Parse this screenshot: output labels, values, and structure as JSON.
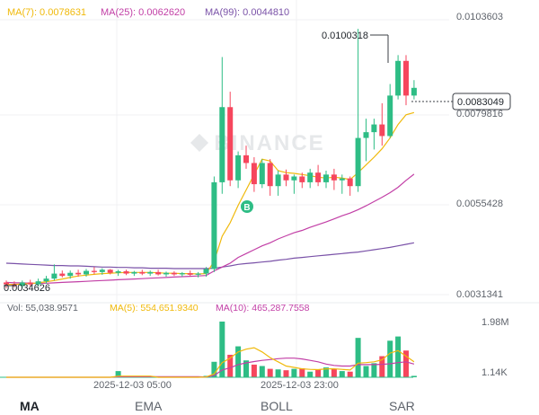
{
  "watermark": "BINANCE",
  "ma_legend": [
    {
      "label": "MA(7): 0.0078631",
      "color": "#f0b90b"
    },
    {
      "label": "MA(25): 0.0062620",
      "color": "#c23fa6"
    },
    {
      "label": "MA(99): 0.0044810",
      "color": "#7a52a8"
    }
  ],
  "price_scale": [
    "0.0103603",
    "0.0079816",
    "0.0055428",
    "0.0031341"
  ],
  "current_price": "0.0083049",
  "high_label": "0.0100318",
  "low_label": "0.0034626",
  "buy_marker": "B",
  "volume_legend": [
    {
      "label": "Vol: 55,038.9571",
      "color": "#5e636b"
    },
    {
      "label": "MA(5): 554,651.9340",
      "color": "#f0b90b"
    },
    {
      "label": "MA(10): 465,287.7558",
      "color": "#c23fa6"
    }
  ],
  "volume_scale": [
    "1.98M",
    "1.14K"
  ],
  "time_labels": [
    "2025-12-03 05:00",
    "2025-12-03 23:00"
  ],
  "tabs": [
    {
      "label": "MA",
      "active": true
    },
    {
      "label": "EMA",
      "active": false
    },
    {
      "label": "BOLL",
      "active": false
    },
    {
      "label": "SAR",
      "active": false
    }
  ],
  "chart_data": {
    "type": "candlestick",
    "up_color": "#2ebd85",
    "down_color": "#f6465d",
    "candles": [
      [
        0.00345,
        0.0035,
        0.0033,
        0.0034
      ],
      [
        0.0034,
        0.00348,
        0.00332,
        0.00336
      ],
      [
        0.00336,
        0.0035,
        0.0033,
        0.00345
      ],
      [
        0.00345,
        0.00352,
        0.00335,
        0.0034
      ],
      [
        0.0034,
        0.00355,
        0.00335,
        0.00348
      ],
      [
        0.00348,
        0.00362,
        0.00342,
        0.00355
      ],
      [
        0.00355,
        0.00392,
        0.0035,
        0.00368
      ],
      [
        0.00368,
        0.00376,
        0.00358,
        0.00362
      ],
      [
        0.00362,
        0.00376,
        0.00355,
        0.0037
      ],
      [
        0.0037,
        0.00378,
        0.0036,
        0.00366
      ],
      [
        0.00366,
        0.0038,
        0.0036,
        0.00375
      ],
      [
        0.00375,
        0.00385,
        0.00366,
        0.00372
      ],
      [
        0.00372,
        0.00382,
        0.00365,
        0.00378
      ],
      [
        0.00378,
        0.0038,
        0.00366,
        0.0037
      ],
      [
        0.0037,
        0.00378,
        0.00362,
        0.00374
      ],
      [
        0.00374,
        0.00378,
        0.00364,
        0.00368
      ],
      [
        0.00368,
        0.00375,
        0.00362,
        0.00372
      ],
      [
        0.00372,
        0.00378,
        0.00364,
        0.00368
      ],
      [
        0.00368,
        0.00376,
        0.00362,
        0.00372
      ],
      [
        0.00372,
        0.00378,
        0.00363,
        0.00366
      ],
      [
        0.00366,
        0.00373,
        0.0036,
        0.0037
      ],
      [
        0.0037,
        0.00374,
        0.00362,
        0.00366
      ],
      [
        0.00366,
        0.00372,
        0.0036,
        0.00369
      ],
      [
        0.00369,
        0.00376,
        0.00362,
        0.00365
      ],
      [
        0.00365,
        0.00372,
        0.00358,
        0.00368
      ],
      [
        0.00368,
        0.00385,
        0.0036,
        0.0038
      ],
      [
        0.0038,
        0.0062,
        0.00372,
        0.00605
      ],
      [
        0.00605,
        0.0093,
        0.00575,
        0.008
      ],
      [
        0.008,
        0.0084,
        0.00595,
        0.0061
      ],
      [
        0.0061,
        0.00685,
        0.0059,
        0.00675
      ],
      [
        0.00675,
        0.007,
        0.0064,
        0.00655
      ],
      [
        0.00655,
        0.0067,
        0.0058,
        0.006
      ],
      [
        0.006,
        0.00665,
        0.0059,
        0.00655
      ],
      [
        0.00655,
        0.00665,
        0.0057,
        0.00595
      ],
      [
        0.00595,
        0.00635,
        0.0057,
        0.00625
      ],
      [
        0.00625,
        0.00638,
        0.00595,
        0.0061
      ],
      [
        0.0061,
        0.00625,
        0.00575,
        0.0062
      ],
      [
        0.0062,
        0.0063,
        0.0059,
        0.00605
      ],
      [
        0.00605,
        0.0064,
        0.0059,
        0.0063
      ],
      [
        0.0063,
        0.0065,
        0.00595,
        0.00605
      ],
      [
        0.00605,
        0.00635,
        0.0059,
        0.00625
      ],
      [
        0.00625,
        0.0064,
        0.00585,
        0.0061
      ],
      [
        0.0061,
        0.00625,
        0.00575,
        0.00615
      ],
      [
        0.00615,
        0.0062,
        0.0057,
        0.00595
      ],
      [
        0.00595,
        0.01003,
        0.0058,
        0.0072
      ],
      [
        0.0072,
        0.0077,
        0.0066,
        0.00735
      ],
      [
        0.00735,
        0.0077,
        0.0069,
        0.00755
      ],
      [
        0.00755,
        0.0081,
        0.007,
        0.00725
      ],
      [
        0.00725,
        0.0086,
        0.0072,
        0.0083
      ],
      [
        0.0083,
        0.00935,
        0.0082,
        0.0092
      ],
      [
        0.0092,
        0.00935,
        0.00805,
        0.0083
      ],
      [
        0.0083,
        0.0087,
        0.0082,
        0.0085
      ]
    ],
    "ma7": [
      0.0034,
      0.0034,
      0.00341,
      0.00342,
      0.00344,
      0.00347,
      0.0035,
      0.00354,
      0.00358,
      0.00362,
      0.00364,
      0.00366,
      0.00368,
      0.00369,
      0.0037,
      0.00371,
      0.00371,
      0.00371,
      0.00371,
      0.0037,
      0.00369,
      0.00369,
      0.00368,
      0.00368,
      0.00367,
      0.00368,
      0.004,
      0.00465,
      0.005,
      0.00545,
      0.00585,
      0.00625,
      0.00665,
      0.0066,
      0.00635,
      0.0063,
      0.00628,
      0.00625,
      0.00622,
      0.00618,
      0.00616,
      0.00618,
      0.00616,
      0.00612,
      0.0063,
      0.0065,
      0.0067,
      0.00692,
      0.0072,
      0.00755,
      0.0078,
      0.00786
    ],
    "ma25": [
      0.00345,
      0.00344,
      0.00344,
      0.00343,
      0.00343,
      0.00343,
      0.00344,
      0.00345,
      0.00346,
      0.00347,
      0.00348,
      0.00349,
      0.0035,
      0.00351,
      0.00352,
      0.00353,
      0.00354,
      0.00355,
      0.00356,
      0.00357,
      0.00358,
      0.00359,
      0.0036,
      0.00361,
      0.00362,
      0.00363,
      0.00375,
      0.00385,
      0.00395,
      0.0041,
      0.0042,
      0.0043,
      0.0044,
      0.00448,
      0.00458,
      0.00466,
      0.00474,
      0.0048,
      0.00488,
      0.00495,
      0.00502,
      0.0051,
      0.00518,
      0.00525,
      0.00534,
      0.00544,
      0.00555,
      0.00566,
      0.00578,
      0.00592,
      0.0061,
      0.00626
    ],
    "ma99": [
      0.00395,
      0.00394,
      0.00393,
      0.00392,
      0.00391,
      0.0039,
      0.00389,
      0.00389,
      0.00388,
      0.00388,
      0.00387,
      0.00386,
      0.00385,
      0.00385,
      0.00384,
      0.00384,
      0.00383,
      0.00383,
      0.00382,
      0.00382,
      0.00382,
      0.00381,
      0.00381,
      0.00381,
      0.00381,
      0.00381,
      0.00382,
      0.00385,
      0.00388,
      0.00392,
      0.00394,
      0.00396,
      0.00398,
      0.004,
      0.00403,
      0.00405,
      0.00408,
      0.0041,
      0.00412,
      0.00414,
      0.00416,
      0.00418,
      0.0042,
      0.00422,
      0.00424,
      0.00427,
      0.0043,
      0.00433,
      0.00436,
      0.0044,
      0.00444,
      0.00448
    ],
    "volume": [
      0,
      0,
      0,
      0,
      0,
      0,
      0,
      0,
      0,
      0,
      0,
      0,
      0,
      0,
      0.22,
      0,
      0,
      0,
      0,
      0,
      0,
      0,
      0,
      0,
      0,
      0.05,
      0.55,
      1.98,
      0.8,
      1.1,
      0.6,
      0.45,
      0.4,
      0.3,
      0.28,
      0.25,
      0.3,
      0.32,
      0.2,
      0.28,
      0.35,
      0.3,
      0.22,
      0.2,
      1.4,
      0.4,
      0.5,
      0.75,
      1.3,
      1.45,
      0.95,
      0.05
    ],
    "volume_ma5": [
      0,
      0,
      0,
      0,
      0,
      0,
      0,
      0,
      0,
      0,
      0,
      0,
      0,
      0,
      0.04,
      0.04,
      0.04,
      0.04,
      0.04,
      0,
      0,
      0,
      0,
      0,
      0,
      0.01,
      0.12,
      0.52,
      0.68,
      0.9,
      1.0,
      1.05,
      0.9,
      0.7,
      0.55,
      0.4,
      0.35,
      0.3,
      0.28,
      0.27,
      0.3,
      0.3,
      0.28,
      0.26,
      0.5,
      0.52,
      0.55,
      0.62,
      0.86,
      0.95,
      0.75,
      0.55
    ],
    "volume_ma10": [
      0,
      0,
      0,
      0,
      0,
      0,
      0,
      0,
      0,
      0,
      0,
      0,
      0,
      0,
      0.02,
      0.02,
      0.02,
      0.02,
      0.02,
      0.02,
      0.02,
      0.02,
      0.02,
      0.02,
      0.02,
      0.01,
      0.06,
      0.26,
      0.34,
      0.45,
      0.51,
      0.56,
      0.6,
      0.63,
      0.66,
      0.68,
      0.68,
      0.65,
      0.6,
      0.55,
      0.47,
      0.42,
      0.4,
      0.4,
      0.45,
      0.45,
      0.45,
      0.46,
      0.48,
      0.52,
      0.55,
      0.47
    ],
    "volume_colors": [
      "u",
      "u",
      "u",
      "u",
      "u",
      "u",
      "u",
      "u",
      "u",
      "u",
      "u",
      "u",
      "u",
      "u",
      "u",
      "u",
      "u",
      "u",
      "u",
      "u",
      "u",
      "u",
      "u",
      "u",
      "u",
      "u",
      "u",
      "u",
      "d",
      "u",
      "u",
      "d",
      "u",
      "d",
      "u",
      "d",
      "u",
      "d",
      "u",
      "d",
      "u",
      "d",
      "u",
      "d",
      "u",
      "u",
      "u",
      "d",
      "u",
      "u",
      "d",
      "u"
    ],
    "price_range": [
      0.0031341,
      0.0103603
    ],
    "volume_range": [
      0,
      1.98
    ]
  }
}
